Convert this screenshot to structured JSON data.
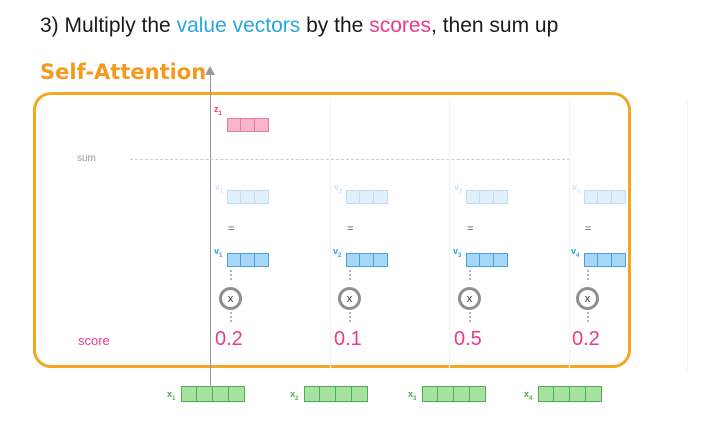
{
  "title": {
    "prefix": "3) Multiply the ",
    "value_vectors": "value vectors",
    "middle": " by the ",
    "scores": "scores",
    "suffix": ", then sum up"
  },
  "self_attention_label": "Self-Attention",
  "z": {
    "label": "z",
    "sub": "1"
  },
  "sum_label": "sum",
  "score_label": "score",
  "equals": "=",
  "multiply": "x",
  "columns": [
    {
      "weighted_label": "v",
      "weighted_sub": "1",
      "v_label": "v",
      "v_sub": "1",
      "score": "0.2",
      "x_label": "x",
      "x_sub": "1"
    },
    {
      "weighted_label": "v",
      "weighted_sub": "2",
      "v_label": "v",
      "v_sub": "2",
      "score": "0.1",
      "x_label": "x",
      "x_sub": "2"
    },
    {
      "weighted_label": "v",
      "weighted_sub": "3",
      "v_label": "v",
      "v_sub": "3",
      "score": "0.5",
      "x_label": "x",
      "x_sub": "3"
    },
    {
      "weighted_label": "v",
      "weighted_sub": "4",
      "v_label": "v",
      "v_sub": "4",
      "score": "0.2",
      "x_label": "x",
      "x_sub": "4"
    }
  ],
  "colors": {
    "value_blue": "#2aa6e0",
    "score_pink": "#ec3a8b",
    "orange": "#f5a623",
    "v_fill": "#a8d8f7",
    "v_border": "#4aa3e0",
    "x_fill": "#a6e3a0",
    "x_border": "#4caf50",
    "z_fill": "#f7b6c9",
    "z_border": "#e87aa0"
  }
}
